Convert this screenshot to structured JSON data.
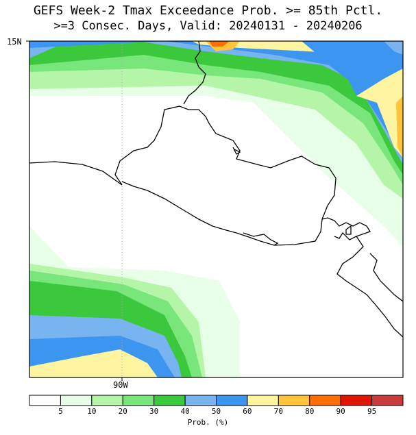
{
  "title_line1": "GEFS Week-2 Tmax Exceedance Prob. >= 85th Pctl.",
  "title_line2": ">=3 Consec. Days, Valid: 20240131 - 20240206",
  "map": {
    "lat_label": "15N",
    "lon_label": "90W",
    "colors": {
      "land_outline": "#000000",
      "gridline": "#aaaaaa"
    }
  },
  "colorbar": {
    "units_label": "Prob. (%)",
    "bins": [
      {
        "color": "#ffffff",
        "label": "5"
      },
      {
        "color": "#e6ffe6",
        "label": "10"
      },
      {
        "color": "#b4f5a8",
        "label": "20"
      },
      {
        "color": "#78e67a",
        "label": "30"
      },
      {
        "color": "#3cc83c",
        "label": "40"
      },
      {
        "color": "#78b4f0",
        "label": "50"
      },
      {
        "color": "#3c96f0",
        "label": "60"
      },
      {
        "color": "#fff5a0",
        "label": "70"
      },
      {
        "color": "#ffc33c",
        "label": "80"
      },
      {
        "color": "#ff6e00",
        "label": "90"
      },
      {
        "color": "#e11400",
        "label": "95"
      },
      {
        "color": "#c83c3c",
        "label": ""
      }
    ]
  }
}
